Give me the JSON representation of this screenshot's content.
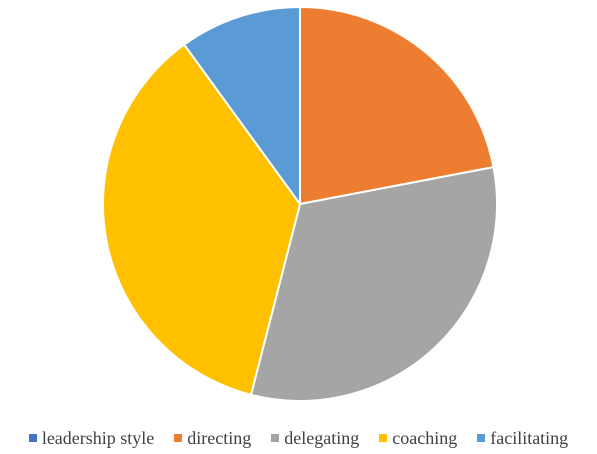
{
  "chart_data": {
    "type": "pie",
    "title": "",
    "categories": [
      "leadership style",
      "directing",
      "delegating",
      "coaching",
      "facilitating"
    ],
    "values": [
      0,
      22,
      32,
      36,
      10
    ],
    "colors": [
      "#4472c4",
      "#ed7d31",
      "#a5a5a5",
      "#ffc000",
      "#5b9bd5"
    ],
    "start_angle_deg": 0,
    "direction": "clockwise",
    "legend_position": "bottom"
  }
}
